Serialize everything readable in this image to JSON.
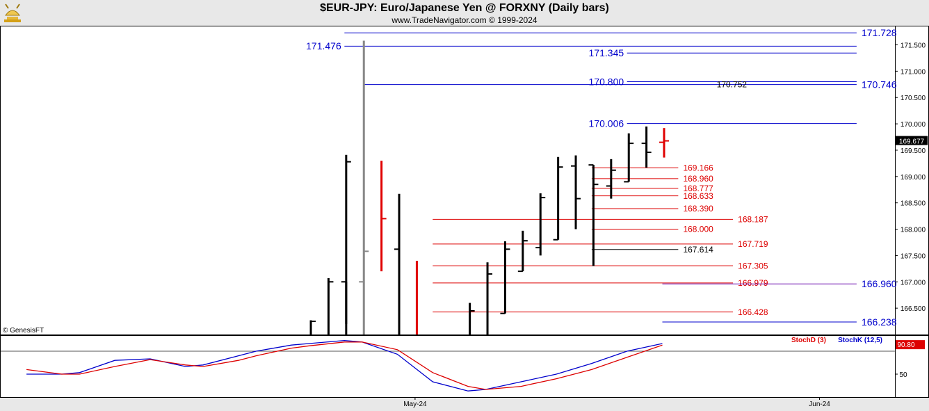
{
  "header": {
    "title": "$EUR-JPY:  Euro/Japanese Yen @ FORXNY  (Daily bars)",
    "subtitle": "www.TradeNavigator.com © 1999-2024",
    "logo_icon": "tradenavigator-bull-logo-icon"
  },
  "footer": {
    "copyright": "© GenesisFT"
  },
  "colors": {
    "bar": "#000000",
    "up_bar": "#e00000",
    "gray_bar": "#888888",
    "blue_level": "#0000cc",
    "red_level": "#dd0000",
    "black_level": "#000000",
    "purple_level": "#6a0dad",
    "stoch_d": "#dd0000",
    "stoch_k": "#0000cc",
    "price_box": "#000000",
    "stoch_box": "#dd0000"
  },
  "chart_data": [
    {
      "type": "ohlc",
      "title": "$EUR-JPY:  Euro/Japanese Yen @ FORXNY  (Daily bars)",
      "ylim": [
        166.0,
        171.85
      ],
      "y_ticks": [
        "166.500",
        "167.000",
        "167.500",
        "168.000",
        "168.500",
        "169.000",
        "169.500",
        "170.000",
        "170.500",
        "171.000",
        "171.500"
      ],
      "x_tick_labels": [
        {
          "label": "May-24",
          "x": 23.5
        },
        {
          "label": "Jun-24",
          "x": 46.4
        }
      ],
      "last_price": "169.677",
      "bars": [
        {
          "x": 17.6,
          "high": 166.27,
          "low": 166.0,
          "close": 166.25,
          "color": "bar"
        },
        {
          "x": 18.6,
          "high": 167.07,
          "low": 166.0,
          "close": 167.0,
          "color": "bar"
        },
        {
          "x": 19.6,
          "high": 167.0,
          "low": 166.0,
          "open": 167.0,
          "color": "bar"
        },
        {
          "x": 19.6,
          "high": 169.41,
          "low": 166.2,
          "close": 169.28,
          "color": "bar"
        },
        {
          "x": 20.6,
          "high": 171.58,
          "low": 166.0,
          "open": 167.0,
          "close": 167.58,
          "color": "gray_bar"
        },
        {
          "x": 21.6,
          "high": 169.3,
          "low": 167.2,
          "close": 168.2,
          "color": "up_bar"
        },
        {
          "x": 22.6,
          "high": 168.67,
          "low": 166.0,
          "open": 167.62,
          "color": "bar"
        },
        {
          "x": 23.6,
          "high": 167.4,
          "low": 166.0,
          "color": "up_bar"
        },
        {
          "x": 26.6,
          "high": 166.6,
          "low": 166.0,
          "close": 166.45,
          "color": "bar"
        },
        {
          "x": 27.6,
          "high": 167.37,
          "low": 166.0,
          "close": 167.15,
          "color": "bar"
        },
        {
          "x": 28.6,
          "high": 167.77,
          "low": 166.4,
          "open": 166.4,
          "close": 167.62,
          "color": "bar"
        },
        {
          "x": 29.6,
          "high": 167.97,
          "low": 167.2,
          "open": 167.2,
          "close": 167.78,
          "color": "bar"
        },
        {
          "x": 30.6,
          "high": 168.68,
          "low": 167.5,
          "open": 167.65,
          "close": 168.6,
          "color": "bar"
        },
        {
          "x": 31.6,
          "high": 169.37,
          "low": 167.8,
          "open": 167.8,
          "close": 169.18,
          "color": "bar"
        },
        {
          "x": 32.6,
          "high": 169.4,
          "low": 168.0,
          "open": 169.2,
          "close": 168.58,
          "color": "bar"
        },
        {
          "x": 33.6,
          "high": 169.22,
          "low": 167.3,
          "open": 169.22,
          "close": 168.85,
          "color": "bar"
        },
        {
          "x": 34.6,
          "high": 169.33,
          "low": 168.58,
          "open": 168.82,
          "close": 169.12,
          "color": "bar"
        },
        {
          "x": 35.6,
          "high": 169.82,
          "low": 168.9,
          "open": 168.9,
          "close": 169.63,
          "color": "bar"
        },
        {
          "x": 36.6,
          "high": 169.95,
          "low": 169.17,
          "open": 169.63,
          "close": 169.46,
          "color": "bar"
        },
        {
          "x": 37.6,
          "high": 169.92,
          "low": 169.36,
          "open": 169.65,
          "close": 169.677,
          "color": "up_bar"
        }
      ],
      "levels": [
        {
          "value": "171.728",
          "numeric": 171.728,
          "x1": 19.5,
          "x2": 48.5,
          "label_x": 48.7,
          "label_side": "right",
          "style": "blue"
        },
        {
          "value": "171.476",
          "numeric": 171.476,
          "x1": 19.5,
          "x2": 48.5,
          "label_x": 19.4,
          "label_side": "left",
          "style": "blue"
        },
        {
          "value": "171.345",
          "numeric": 171.345,
          "x1": 35.5,
          "x2": 48.5,
          "label_x": 35.4,
          "label_side": "left",
          "style": "blue"
        },
        {
          "value": "170.800",
          "numeric": 170.8,
          "x1": 35.5,
          "x2": 48.5,
          "label_x": 35.4,
          "label_side": "left",
          "style": "blue"
        },
        {
          "value": "170.746",
          "numeric": 170.746,
          "x1": 20.6,
          "x2": 48.5,
          "label_x": 48.7,
          "label_side": "right",
          "style": "blue"
        },
        {
          "value": "170.752",
          "numeric": 170.752,
          "x1": 20.6,
          "x2": 48.5,
          "label_x": 40.5,
          "label_side": "right",
          "style": "black",
          "no_line": true
        },
        {
          "value": "170.006",
          "numeric": 170.006,
          "x1": 35.5,
          "x2": 48.5,
          "label_x": 35.4,
          "label_side": "left",
          "style": "blue"
        },
        {
          "value": "169.166",
          "numeric": 169.166,
          "x1": 33.5,
          "x2": 38.4,
          "label_x": 38.6,
          "label_side": "right",
          "style": "red"
        },
        {
          "value": "168.960",
          "numeric": 168.96,
          "x1": 33.5,
          "x2": 38.4,
          "label_x": 38.6,
          "label_side": "right",
          "style": "red"
        },
        {
          "value": "168.777",
          "numeric": 168.777,
          "x1": 33.5,
          "x2": 38.4,
          "label_x": 38.6,
          "label_side": "right",
          "style": "red"
        },
        {
          "value": "168.633",
          "numeric": 168.633,
          "x1": 33.5,
          "x2": 38.4,
          "label_x": 38.6,
          "label_side": "right",
          "style": "red"
        },
        {
          "value": "168.390",
          "numeric": 168.39,
          "x1": 33.5,
          "x2": 38.4,
          "label_x": 38.6,
          "label_side": "right",
          "style": "red"
        },
        {
          "value": "168.187",
          "numeric": 168.187,
          "x1": 24.5,
          "x2": 41.5,
          "label_x": 41.7,
          "label_side": "right",
          "style": "red"
        },
        {
          "value": "168.000",
          "numeric": 168.0,
          "x1": 33.5,
          "x2": 38.4,
          "label_x": 38.6,
          "label_side": "right",
          "style": "red"
        },
        {
          "value": "167.719",
          "numeric": 167.719,
          "x1": 24.5,
          "x2": 41.5,
          "label_x": 41.7,
          "label_side": "right",
          "style": "red"
        },
        {
          "value": "167.614",
          "numeric": 167.614,
          "x1": 33.5,
          "x2": 38.4,
          "label_x": 38.6,
          "label_side": "right",
          "style": "black"
        },
        {
          "value": "167.305",
          "numeric": 167.305,
          "x1": 24.5,
          "x2": 41.5,
          "label_x": 41.7,
          "label_side": "right",
          "style": "red"
        },
        {
          "value": "166.979",
          "numeric": 166.979,
          "x1": 24.5,
          "x2": 41.5,
          "label_x": 41.7,
          "label_side": "right",
          "style": "red"
        },
        {
          "value": "166.960",
          "numeric": 166.96,
          "x1": 37.5,
          "x2": 48.5,
          "label_x": 48.7,
          "label_side": "right",
          "style": "purple"
        },
        {
          "value": "166.428",
          "numeric": 166.428,
          "x1": 24.5,
          "x2": 41.5,
          "label_x": 41.7,
          "label_side": "right",
          "style": "red"
        },
        {
          "value": "166.238",
          "numeric": 166.238,
          "x1": 37.5,
          "x2": 48.5,
          "label_x": 48.7,
          "label_side": "right",
          "style": "blue"
        }
      ]
    },
    {
      "type": "line",
      "title": "",
      "ylim": [
        20,
        100
      ],
      "y_ticks": [
        "50"
      ],
      "reference_line": 80,
      "last_value": "90.80",
      "legend": [
        {
          "name": "StochD (3)",
          "color": "stoch_d"
        },
        {
          "name": "StochK (12,5)",
          "color": "stoch_k"
        }
      ],
      "series": [
        {
          "name": "StochK (12,5)",
          "color": "stoch_k",
          "x": [
            1.5,
            3.5,
            4.5,
            6.5,
            8.5,
            10.5,
            11.5,
            13.5,
            14.5,
            16.5,
            17.5,
            19.5,
            20.5,
            22.5,
            24.5,
            26.5,
            27.5,
            29.5,
            31.5,
            33.5,
            35.5,
            37.5
          ],
          "y": [
            50,
            50,
            52,
            68,
            70,
            60,
            62,
            74,
            80,
            88,
            90,
            94,
            92,
            76,
            40,
            28,
            30,
            40,
            50,
            64,
            80,
            90
          ]
        },
        {
          "name": "StochD (3)",
          "color": "stoch_d",
          "x": [
            1.5,
            3.5,
            4.5,
            6.5,
            8.5,
            10.5,
            11.5,
            13.5,
            14.5,
            16.5,
            17.5,
            19.5,
            20.5,
            22.5,
            24.5,
            26.5,
            27.5,
            29.5,
            31.5,
            33.5,
            35.5,
            37.5
          ],
          "y": [
            56,
            50,
            50,
            60,
            69,
            62,
            60,
            68,
            74,
            84,
            87,
            92,
            92,
            82,
            52,
            34,
            30,
            34,
            44,
            56,
            72,
            88
          ]
        }
      ]
    }
  ]
}
